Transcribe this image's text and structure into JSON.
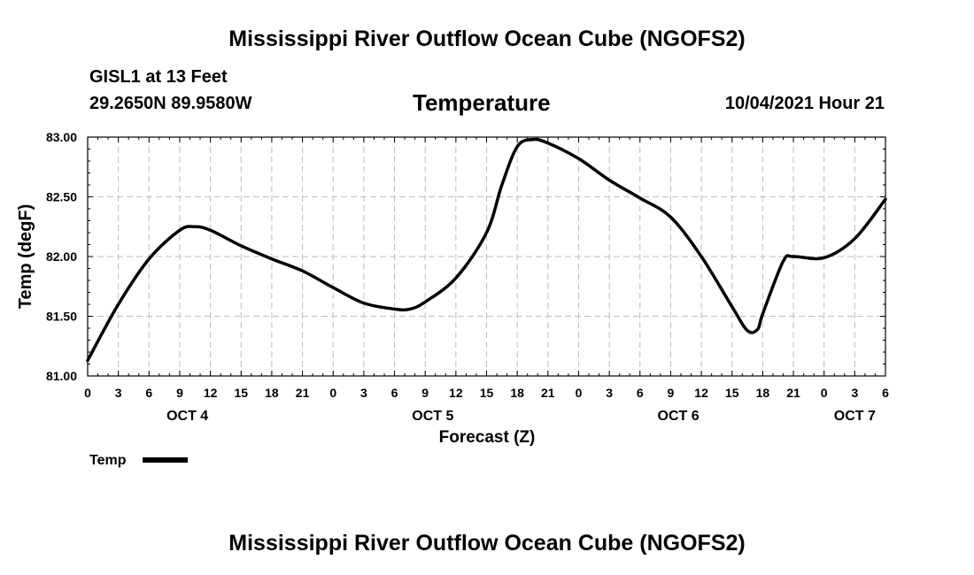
{
  "header": {
    "title_top": "Mississippi River Outflow Ocean Cube (NGOFS2)",
    "title_bottom": "Mississippi River Outflow Ocean Cube (NGOFS2)",
    "station": "GISL1 at 13 Feet",
    "coords": "29.2650N  89.9580W",
    "datetime": "10/04/2021 Hour 21"
  },
  "chart_data": {
    "type": "line",
    "title": "Temperature",
    "xlabel": "Forecast (Z)",
    "ylabel": "Temp (degF)",
    "ylim": [
      81.0,
      83.0
    ],
    "xlim": [
      0,
      78
    ],
    "grid": true,
    "y_ticks": [
      "81.00",
      "81.50",
      "82.00",
      "82.50",
      "83.00"
    ],
    "y_tick_values": [
      81.0,
      81.5,
      82.0,
      82.5,
      83.0
    ],
    "x_ticks": [
      "0",
      "3",
      "6",
      "9",
      "12",
      "15",
      "18",
      "21",
      "0",
      "3",
      "6",
      "9",
      "12",
      "15",
      "18",
      "21",
      "0",
      "3",
      "6",
      "9",
      "12",
      "15",
      "18",
      "21",
      "0",
      "3",
      "6"
    ],
    "day_labels": [
      {
        "label": "OCT 4",
        "hour": 9.75
      },
      {
        "label": "OCT 5",
        "hour": 33.75
      },
      {
        "label": "OCT 6",
        "hour": 57.75
      },
      {
        "label": "OCT 7",
        "hour": 75.0
      }
    ],
    "legend": {
      "label": "Temp",
      "position": "bottom-left"
    },
    "series": [
      {
        "name": "Temp",
        "color": "#000000",
        "x": [
          0,
          3,
          6,
          9,
          10.5,
          12,
          15,
          18,
          21,
          24,
          27,
          30,
          31.5,
          33,
          36,
          39,
          40.5,
          42,
          43.5,
          45,
          48,
          51,
          54,
          57,
          60,
          63,
          64.5,
          65.5,
          66,
          68,
          69,
          72,
          75,
          78
        ],
        "values": [
          81.13,
          81.6,
          81.98,
          82.22,
          82.25,
          82.22,
          82.09,
          81.98,
          81.88,
          81.74,
          81.61,
          81.56,
          81.56,
          81.62,
          81.82,
          82.2,
          82.6,
          82.92,
          82.98,
          82.95,
          82.82,
          82.64,
          82.49,
          82.33,
          82.0,
          81.58,
          81.38,
          81.39,
          81.52,
          81.96,
          82.0,
          81.99,
          82.15,
          82.48
        ]
      }
    ]
  }
}
